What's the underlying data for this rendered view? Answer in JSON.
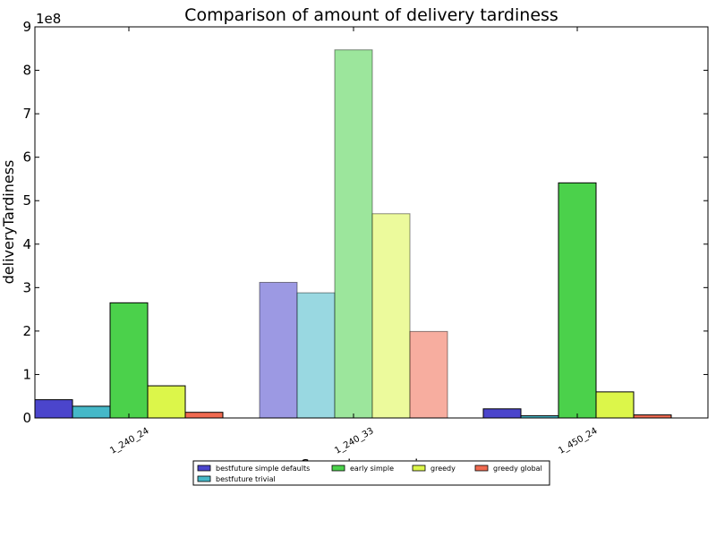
{
  "chart_data": {
    "type": "bar",
    "title": "Comparison of amount of delivery tardiness",
    "ylabel": "deliveryTardiness",
    "xlabel": "Scenario comparison",
    "y_multiplier_label": "1e8",
    "ylim": [
      0,
      9
    ],
    "y_scale": 100000000,
    "y_ticks": [
      "0",
      "1",
      "2",
      "3",
      "4",
      "5",
      "6",
      "7",
      "8",
      "9"
    ],
    "categories": [
      "1_240_24",
      "1_240_33",
      "1_450_24"
    ],
    "series": [
      {
        "name": "bestfuture simple defaults",
        "color": "#4b45cc",
        "values": [
          0.42,
          3.12,
          0.21
        ]
      },
      {
        "name": "bestfuture trivial",
        "color": "#45b8c8",
        "values": [
          0.27,
          2.88,
          0.05
        ]
      },
      {
        "name": "early simple",
        "color": "#4bd14b",
        "values": [
          2.65,
          8.47,
          5.41
        ]
      },
      {
        "name": "greedy",
        "color": "#dcf64a",
        "values": [
          0.74,
          4.7,
          0.6
        ]
      },
      {
        "name": "greedy global",
        "color": "#f06a50",
        "values": [
          0.13,
          1.99,
          0.07
        ]
      }
    ],
    "faded_category_index": 1,
    "legend_position": "bottom-center",
    "grid": false
  }
}
